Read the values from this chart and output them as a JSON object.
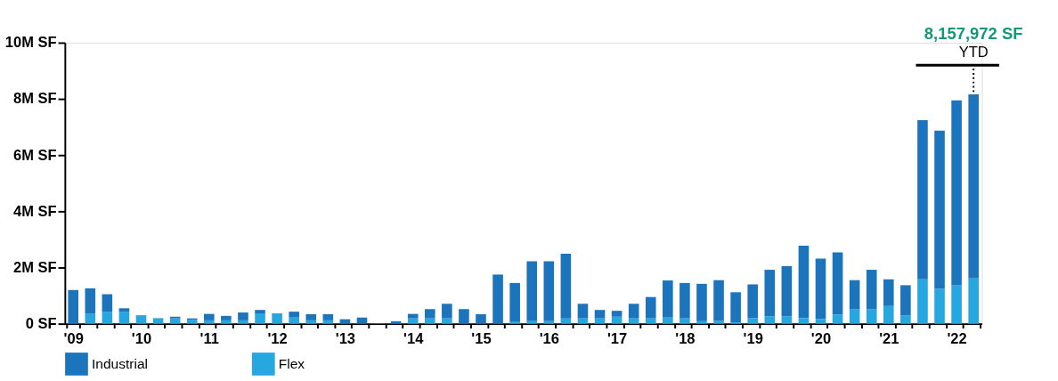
{
  "chart_data": {
    "type": "bar",
    "stacked": true,
    "categories": [
      "'09",
      null,
      null,
      null,
      "'10",
      null,
      null,
      null,
      "'11",
      null,
      null,
      null,
      "'12",
      null,
      null,
      null,
      "'13",
      null,
      null,
      null,
      "'14",
      null,
      null,
      null,
      "'15",
      null,
      null,
      null,
      "'16",
      null,
      null,
      null,
      "'17",
      null,
      null,
      null,
      "'18",
      null,
      null,
      null,
      "'19",
      null,
      null,
      null,
      "'20",
      null,
      null,
      null,
      "'21",
      null,
      null,
      null,
      "'22",
      null
    ],
    "series": [
      {
        "name": "Flex",
        "color": "#26a7df",
        "values": [
          0,
          0.35,
          0.43,
          0.43,
          0.28,
          0.19,
          0.19,
          0.14,
          0.12,
          0.12,
          0.12,
          0.37,
          0.37,
          0.22,
          0.12,
          0.12,
          0,
          0,
          0,
          0,
          0.19,
          0.19,
          0.19,
          0,
          0,
          0,
          0.06,
          0.09,
          0.09,
          0.19,
          0.19,
          0.19,
          0.25,
          0.19,
          0.19,
          0.22,
          0.19,
          0.09,
          0.1,
          0.05,
          0.2,
          0.26,
          0.26,
          0.2,
          0.17,
          0.32,
          0.51,
          0.51,
          0.63,
          0.29,
          1.58,
          1.24,
          1.37,
          1.61
        ]
      },
      {
        "name": "Industrial",
        "color": "#1c75bc",
        "values": [
          1.2,
          0.91,
          0.62,
          0.12,
          0.02,
          0.01,
          0.06,
          0.05,
          0.23,
          0.16,
          0.28,
          0.12,
          0,
          0.21,
          0.22,
          0.22,
          0.16,
          0.22,
          0.02,
          0.09,
          0.16,
          0.33,
          0.52,
          0.52,
          0.34,
          1.75,
          1.39,
          2.13,
          2.13,
          2.3,
          0.52,
          0.3,
          0.21,
          0.52,
          0.76,
          1.32,
          1.26,
          1.33,
          1.45,
          1.07,
          1.2,
          1.66,
          1.79,
          2.58,
          2.15,
          2.22,
          1.04,
          1.41,
          0.95,
          1.08,
          5.66,
          5.63,
          6.58,
          6.55
        ]
      }
    ],
    "ylim": [
      0,
      10
    ],
    "yticks": [
      {
        "value": 0,
        "label": "0 SF"
      },
      {
        "value": 2,
        "label": "2M SF"
      },
      {
        "value": 4,
        "label": "4M SF"
      },
      {
        "value": 6,
        "label": "6M SF"
      },
      {
        "value": 8,
        "label": "8M SF"
      },
      {
        "value": 10,
        "label": "10M SF"
      }
    ],
    "annotations": [
      "8,157,972 SF",
      {
        "text": "YTD",
        "y": 8.16
      }
    ],
    "legend": "bottom",
    "grid": false
  }
}
